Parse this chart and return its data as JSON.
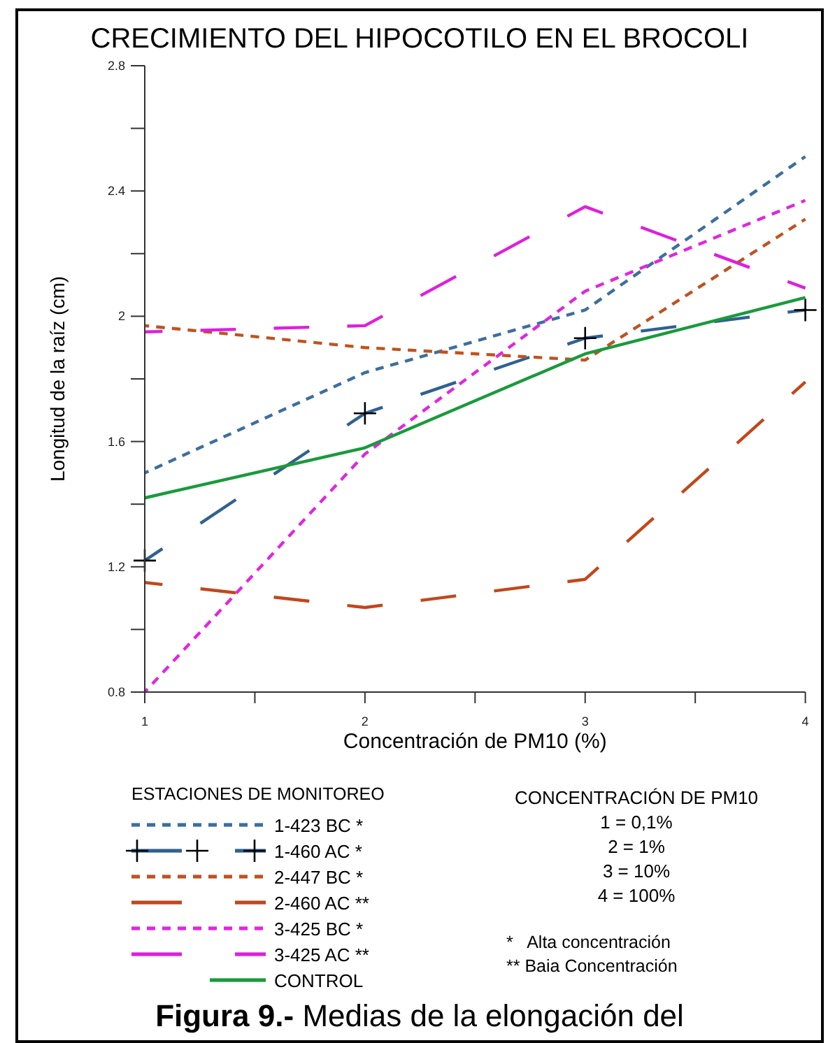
{
  "chart_data": {
    "type": "line",
    "title": "CRECIMIENTO DEL HIPOCOTILO EN EL BROCOLI",
    "xlabel": "Concentración de PM10 (%)",
    "ylabel": "Longitud de la raíz (cm)",
    "legend_title": "ESTACIONES DE MONITOREO",
    "legend": "bottom",
    "grid": false,
    "x": [
      1,
      2,
      3,
      4
    ],
    "xlim": [
      1,
      4
    ],
    "xticks": [
      1,
      {
        "value": 1.5,
        "label": null
      },
      2,
      {
        "value": 2.5,
        "label": null
      },
      3,
      {
        "value": 3.5,
        "label": null
      },
      4
    ],
    "ylim": [
      0.8,
      2.8
    ],
    "yticks": [
      {
        "value": 0.8,
        "label": "0.8"
      },
      {
        "value": 1.0,
        "label": null
      },
      {
        "value": 1.2,
        "label": "1.2"
      },
      {
        "value": 1.4,
        "label": null
      },
      {
        "value": 1.6,
        "label": "1.6"
      },
      {
        "value": 1.8,
        "label": null
      },
      2,
      {
        "value": 2.2,
        "label": null
      },
      {
        "value": 2.4,
        "label": "2.4"
      },
      {
        "value": 2.6,
        "label": null
      },
      {
        "value": 2.8,
        "label": "2.8"
      }
    ],
    "series": [
      {
        "name": "1-423 BC *",
        "color": "#3d6f9e",
        "line_style": "dotted",
        "values": [
          1.5,
          1.82,
          2.02,
          2.51
        ]
      },
      {
        "name": "1-460 AC *",
        "color": "#2f6190",
        "line_style": "dashed",
        "marker": "cross",
        "values": [
          1.22,
          1.69,
          1.93,
          2.02
        ]
      },
      {
        "name": "2-447 BC *",
        "color": "#c0521f",
        "line_style": "dotted",
        "values": [
          1.97,
          1.9,
          1.86,
          2.31
        ]
      },
      {
        "name": "2-460 AC **",
        "color": "#c2471a",
        "line_style": "dashed",
        "values": [
          1.15,
          1.07,
          1.16,
          1.79
        ]
      },
      {
        "name": "3-425 BC *",
        "color": "#e026e0",
        "line_style": "dotted",
        "values": [
          0.8,
          1.56,
          2.08,
          2.37
        ]
      },
      {
        "name": "3-425 AC **",
        "color": "#dd1fdd",
        "line_style": "dashed",
        "values": [
          1.95,
          1.97,
          2.35,
          2.09
        ]
      },
      {
        "name": "CONTROL",
        "color": "#1a9a3c",
        "line_style": "solid",
        "values": [
          1.42,
          1.58,
          1.88,
          2.06
        ]
      }
    ],
    "annotations": [
      "CONCENTRACIÓN DE PM10",
      "1 = 0,1%",
      "2 = 1%",
      "3 = 10%",
      "4 = 100%",
      "*   Alta concentración",
      "** Baia Concentración",
      "Figura 9.- Medias de la elongación del"
    ]
  }
}
